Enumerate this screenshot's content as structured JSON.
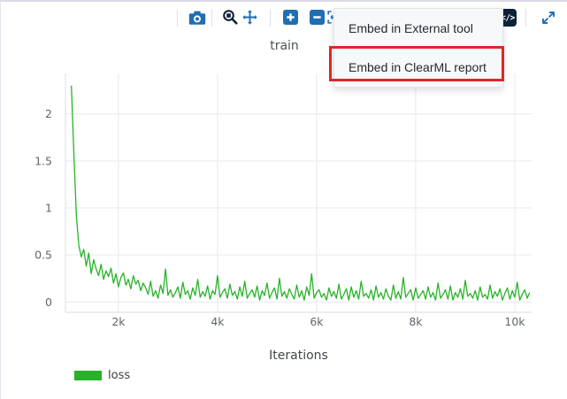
{
  "colors": {
    "accent_blue": "#1f6fb2",
    "icon_dark": "#101f33",
    "embed_badge_bg": "#0d2137",
    "highlight_red": "#e1242b",
    "grid": "#e7e9f0",
    "axis": "#dfe2e9",
    "tick_text": "#60656c",
    "series_green": "#27b327",
    "menu_bg": "#f7f8fa"
  },
  "toolbar": {
    "buttons": [
      {
        "name": "download-plot-button",
        "icon": "camera-icon"
      },
      {
        "name": "box-zoom-button",
        "icon": "zoom-magnifier-icon"
      },
      {
        "name": "pan-button",
        "icon": "pan-arrows-icon"
      },
      {
        "name": "zoom-in-button",
        "icon": "plus-icon"
      },
      {
        "name": "zoom-out-button",
        "icon": "minus-icon"
      },
      {
        "name": "autoscale-button",
        "icon": "autoscale-icon"
      },
      {
        "name": "embed-button",
        "icon": "code-embed-icon"
      },
      {
        "name": "maximize-button",
        "icon": "expand-arrows-icon"
      }
    ],
    "embed_glyph": "</>"
  },
  "menu": {
    "items": [
      {
        "label": "Embed in External tool",
        "highlighted": false
      },
      {
        "label": "Embed in ClearML report",
        "highlighted": true
      }
    ]
  },
  "chart_data": {
    "type": "line",
    "title": "train",
    "xlabel": "Iterations",
    "ylabel": "",
    "xlim": [
      930,
      10340
    ],
    "ylim": [
      -0.11,
      2.43
    ],
    "grid": true,
    "x_ticks": {
      "values": [
        2000,
        4000,
        6000,
        8000,
        10000
      ],
      "labels": [
        "2k",
        "4k",
        "6k",
        "8k",
        "10k"
      ]
    },
    "y_ticks": {
      "values": [
        0,
        0.5,
        1,
        1.5,
        2
      ],
      "labels": [
        "0",
        "0.5",
        "1",
        "1.5",
        "2"
      ]
    },
    "legend": {
      "position": "bottom-left",
      "entries": [
        {
          "label": "loss",
          "color": "#27b327"
        }
      ]
    },
    "series": [
      {
        "name": "loss",
        "color": "#27b327",
        "x_start": 1050,
        "x_step": 50,
        "y": [
          2.3,
          1.58,
          0.92,
          0.6,
          0.48,
          0.56,
          0.38,
          0.52,
          0.3,
          0.45,
          0.35,
          0.28,
          0.4,
          0.24,
          0.33,
          0.27,
          0.36,
          0.2,
          0.3,
          0.16,
          0.26,
          0.31,
          0.18,
          0.24,
          0.14,
          0.28,
          0.19,
          0.23,
          0.12,
          0.2,
          0.15,
          0.08,
          0.22,
          0.06,
          0.12,
          0.04,
          0.18,
          0.09,
          0.35,
          0.07,
          0.13,
          0.05,
          0.1,
          0.16,
          0.04,
          0.21,
          0.08,
          0.12,
          0.03,
          0.15,
          0.07,
          0.24,
          0.05,
          0.11,
          0.06,
          0.17,
          0.03,
          0.12,
          0.08,
          0.28,
          0.05,
          0.1,
          0.14,
          0.04,
          0.19,
          0.07,
          0.11,
          0.03,
          0.16,
          0.06,
          0.22,
          0.04,
          0.09,
          0.13,
          0.05,
          0.17,
          0.02,
          0.12,
          0.07,
          0.2,
          0.04,
          0.1,
          0.15,
          0.03,
          0.25,
          0.06,
          0.11,
          0.04,
          0.14,
          0.08,
          0.03,
          0.18,
          0.05,
          0.12,
          0.02,
          0.16,
          0.07,
          0.3,
          0.04,
          0.1,
          0.13,
          0.05,
          0.09,
          0.02,
          0.15,
          0.06,
          0.11,
          0.04,
          0.19,
          0.03,
          0.08,
          0.14,
          0.02,
          0.16,
          0.05,
          0.12,
          0.03,
          0.22,
          0.06,
          0.09,
          0.04,
          0.13,
          0.02,
          0.17,
          0.05,
          0.1,
          0.03,
          0.14,
          0.06,
          0.02,
          0.18,
          0.04,
          0.11,
          0.03,
          0.26,
          0.05,
          0.09,
          0.13,
          0.02,
          0.15,
          0.04,
          0.08,
          0.12,
          0.03,
          0.16,
          0.05,
          0.1,
          0.02,
          0.2,
          0.04,
          0.08,
          0.13,
          0.03,
          0.17,
          0.02,
          0.1,
          0.05,
          0.14,
          0.03,
          0.23,
          0.06,
          0.09,
          0.04,
          0.12,
          0.02,
          0.16,
          0.05,
          0.08,
          0.03,
          0.18,
          0.04,
          0.11,
          0.06,
          0.14,
          0.02,
          0.09,
          0.15,
          0.03,
          0.12,
          0.05,
          0.21,
          0.02,
          0.08,
          0.13,
          0.04,
          0.1
        ]
      }
    ]
  }
}
